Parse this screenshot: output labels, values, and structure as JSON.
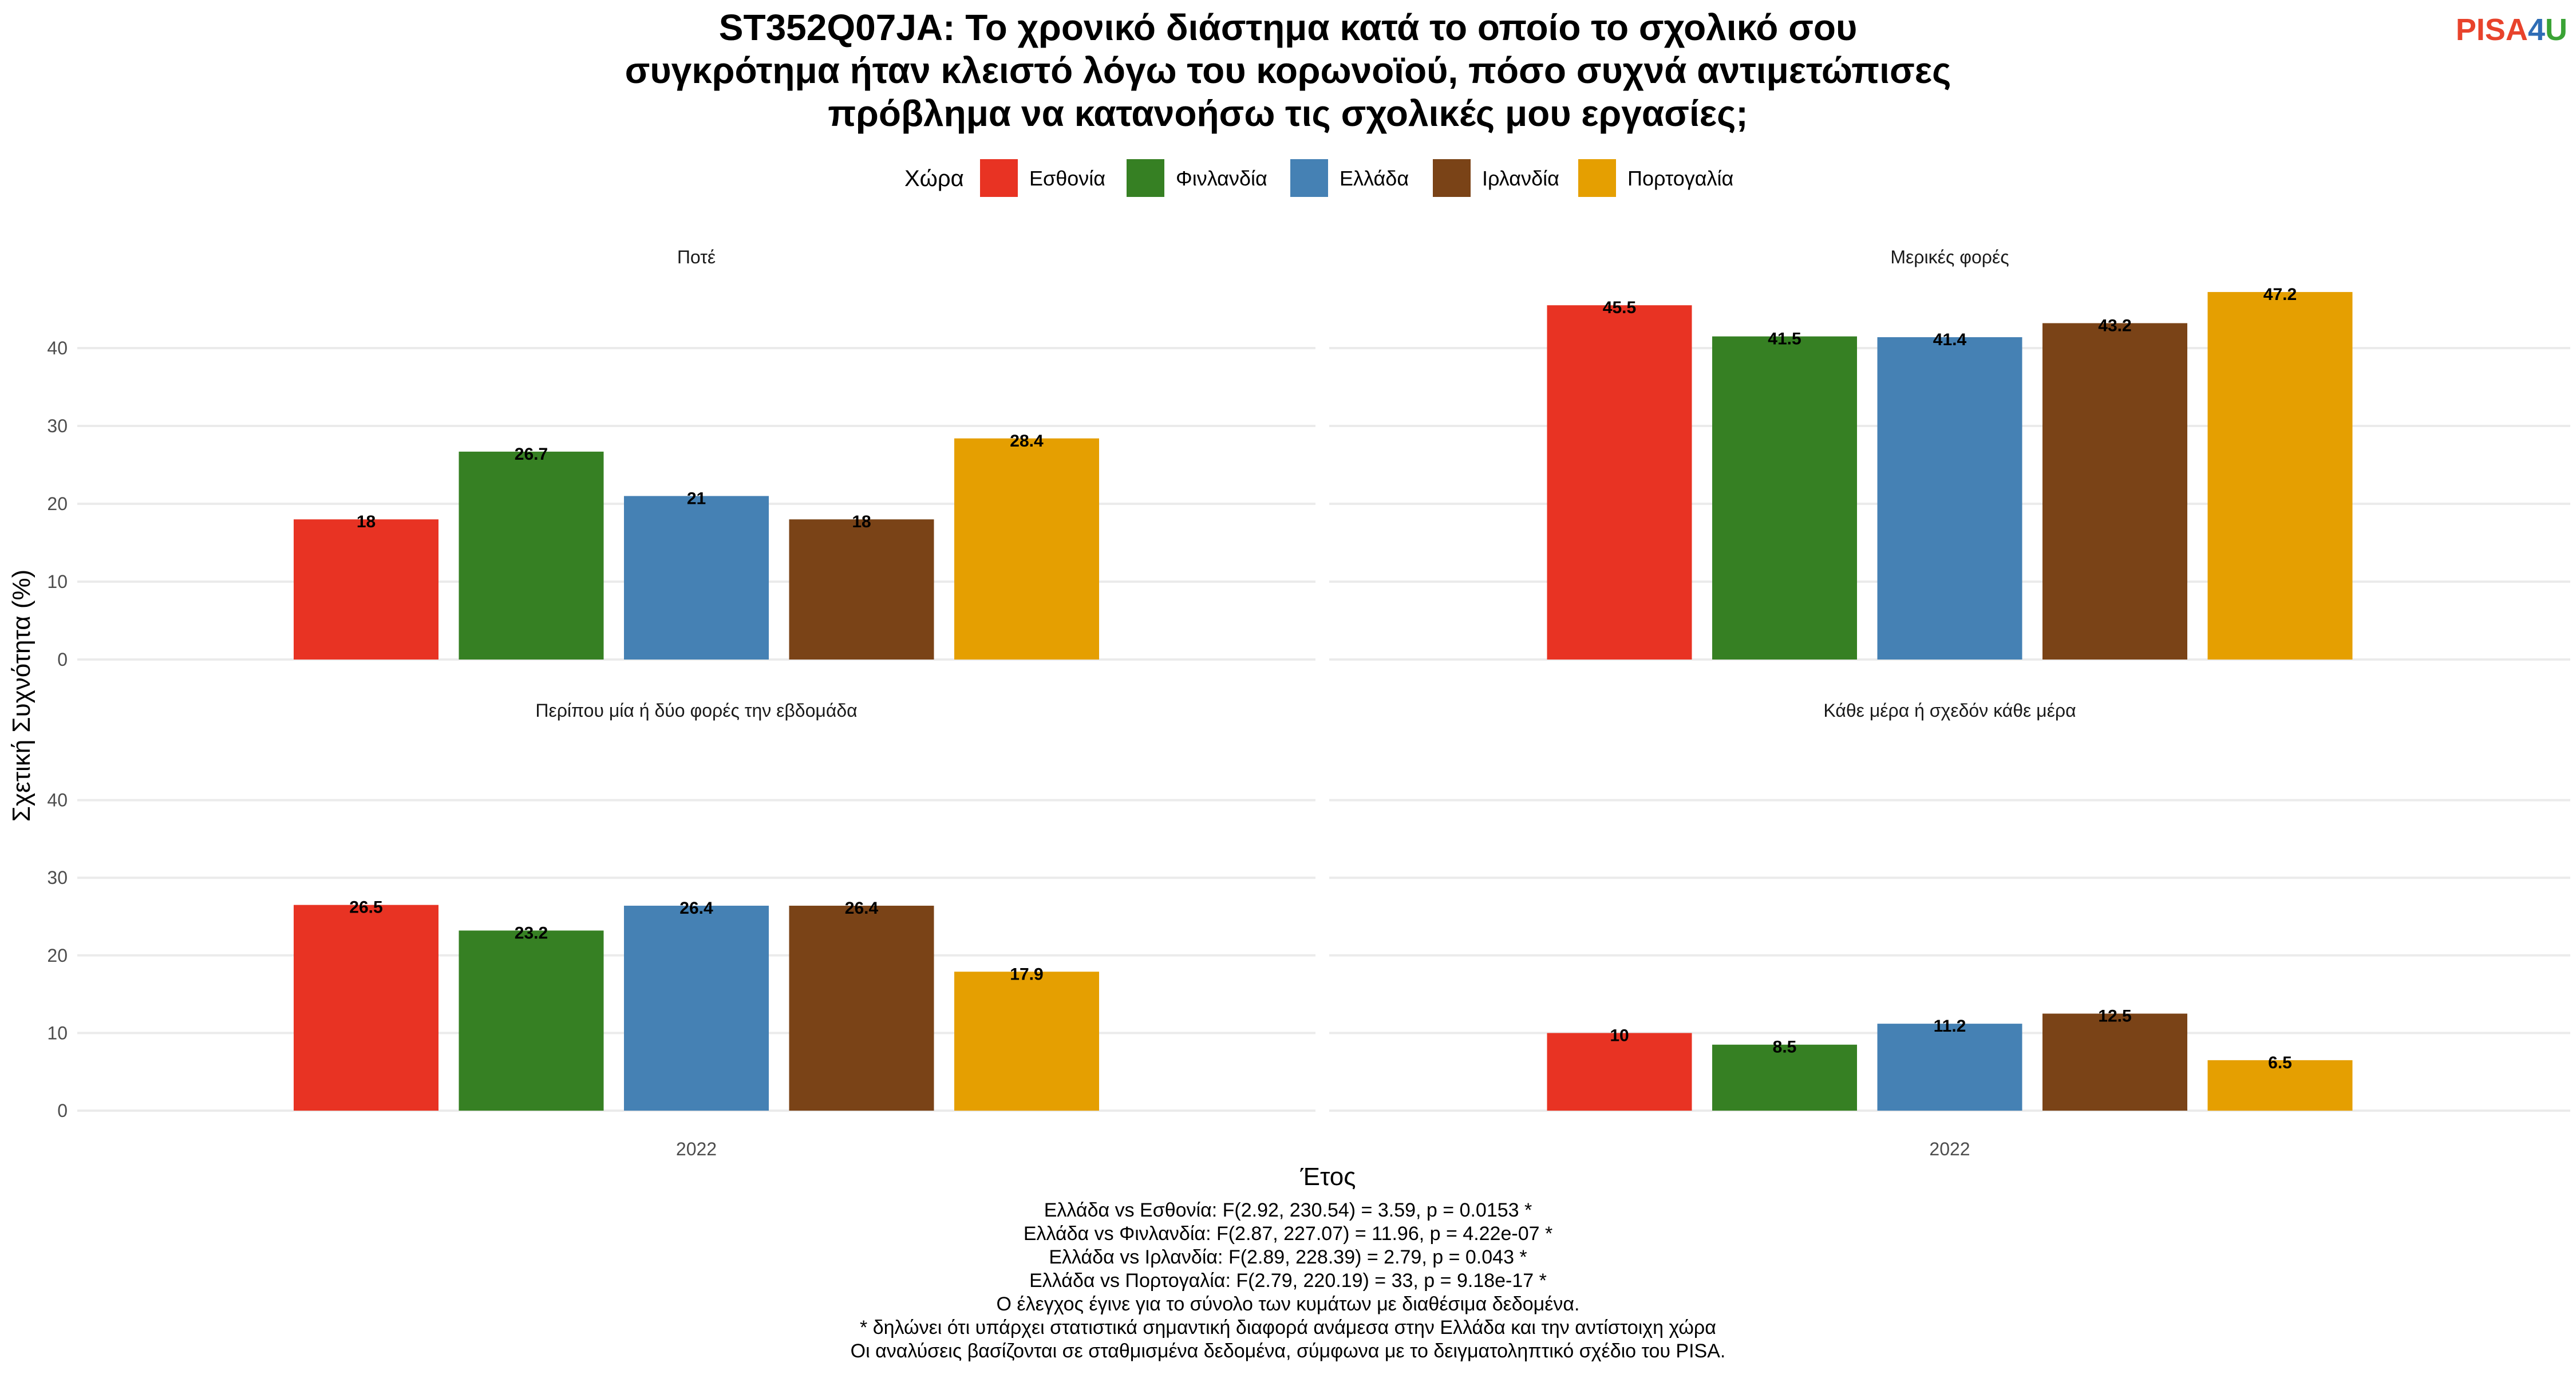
{
  "logo": {
    "part1": "PISA",
    "part2": "4",
    "part3": "U",
    "colors": {
      "part1": "#e8432c",
      "part2": "#2f6db5",
      "part3": "#3aa335"
    }
  },
  "title_lines": [
    "ST352Q07JA: Το χρονικό διάστημα κατά το οποίο το σχολικό σου",
    "συγκρότημα ήταν κλειστό λόγω του κορωνοϊού, πόσο συχνά αντιμετώπισες",
    "πρόβλημα να κατανοήσω τις σχολικές μου εργασίες;"
  ],
  "legend": {
    "title": "Χώρα",
    "items": [
      {
        "label": "Εσθονία",
        "color": "#e83323"
      },
      {
        "label": "Φινλανδία",
        "color": "#368023"
      },
      {
        "label": "Ελλάδα",
        "color": "#4581b4"
      },
      {
        "label": "Ιρλανδία",
        "color": "#7a4317"
      },
      {
        "label": "Πορτογαλία",
        "color": "#e59f01"
      }
    ]
  },
  "chart_data": {
    "type": "bar",
    "xlabel": "Έτος",
    "ylabel": "Σχετική Συχνότητα (%)",
    "ylim": [
      0,
      50
    ],
    "yticks": [
      0,
      10,
      20,
      30,
      40
    ],
    "categories": [
      "2022"
    ],
    "legend_position": "top",
    "grid": true,
    "panels": [
      {
        "title": "Ποτέ",
        "values": [
          18,
          26.7,
          21,
          18,
          28.4
        ],
        "labels": [
          "18",
          "26.7",
          "21",
          "18",
          "28.4"
        ]
      },
      {
        "title": "Μερικές φορές",
        "values": [
          45.5,
          41.5,
          41.4,
          43.2,
          47.2
        ],
        "labels": [
          "45.5",
          "41.5",
          "41.4",
          "43.2",
          "47.2"
        ]
      },
      {
        "title": "Περίπου μία ή δύο φορές την εβδομάδα",
        "values": [
          26.5,
          23.2,
          26.4,
          26.4,
          17.9
        ],
        "labels": [
          "26.5",
          "23.2",
          "26.4",
          "26.4",
          "17.9"
        ]
      },
      {
        "title": "Κάθε μέρα ή σχεδόν κάθε μέρα",
        "values": [
          10,
          8.5,
          11.2,
          12.5,
          6.5
        ],
        "labels": [
          "10",
          "8.5",
          "11.2",
          "12.5",
          "6.5"
        ]
      }
    ]
  },
  "footnotes": [
    "Ελλάδα vs Εσθονία: F(2.92, 230.54) = 3.59, p = 0.0153 *",
    "Ελλάδα vs Φινλανδία: F(2.87, 227.07) = 11.96, p = 4.22e-07 *",
    "Ελλάδα vs Ιρλανδία: F(2.89, 228.39) = 2.79, p = 0.043 *",
    "Ελλάδα vs Πορτογαλία: F(2.79, 220.19) = 33, p = 9.18e-17 *",
    "Ο έλεγχος έγινε για το σύνολο των κυμάτων με διαθέσιμα δεδομένα.",
    "* δηλώνει ότι υπάρχει στατιστικά σημαντική διαφορά ανάμεσα στην Ελλάδα και την αντίστοιχη χώρα",
    "Οι αναλύσεις βασίζονται σε σταθμισμένα δεδομένα, σύμφωνα με το δειγματοληπτικό σχέδιο του PISA."
  ]
}
